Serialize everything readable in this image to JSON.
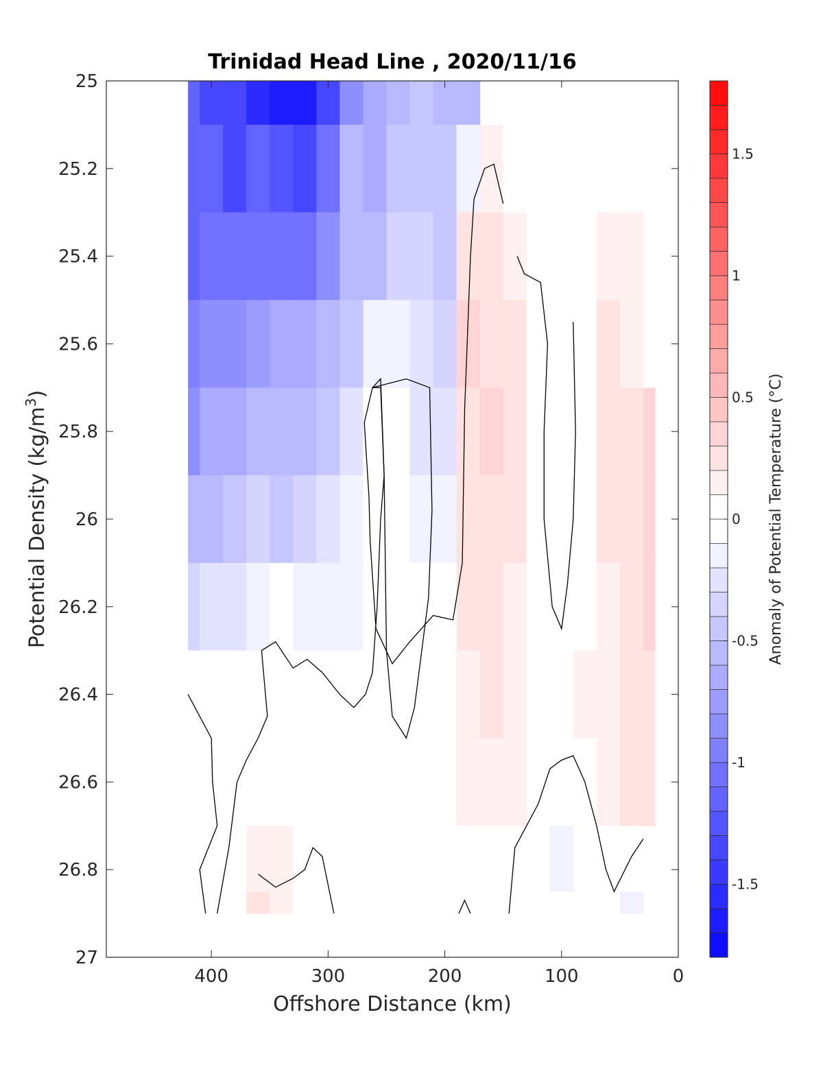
{
  "chart_data": {
    "type": "heatmap",
    "title": "Trinidad Head Line , 2020/11/16",
    "xlabel": "Offshore Distance (km)",
    "ylabel_main": "Potential Density (kg/m",
    "ylabel_sup": "3",
    "ylabel_close": ")",
    "xlim": [
      490,
      0
    ],
    "ylim": [
      25,
      27
    ],
    "y_reversed": true,
    "x_ticks": [
      "400",
      "300",
      "200",
      "100",
      "0"
    ],
    "y_ticks": [
      "25",
      "25.2",
      "25.4",
      "25.6",
      "25.8",
      "26",
      "26.2",
      "26.4",
      "26.6",
      "26.8",
      "27"
    ],
    "colorbar": {
      "label": "Anomaly of Potential Temperature (°C)",
      "range": [
        -1.8,
        1.8
      ],
      "levels_step": 0.1,
      "ticks": [
        "1.5",
        "1",
        "0.5",
        "0",
        "-0.5",
        "-1",
        "-1.5"
      ],
      "negative_color": "#0000ff",
      "zero_color": "#ffffff",
      "positive_color": "#ff0000"
    },
    "x": [
      420,
      400,
      380,
      360,
      340,
      320,
      300,
      280,
      260,
      240,
      220,
      200,
      180,
      160,
      140,
      120,
      100,
      80,
      60,
      40,
      20
    ],
    "y": [
      25.0,
      25.2,
      25.4,
      25.6,
      25.8,
      26.0,
      26.2,
      26.4,
      26.6,
      26.8,
      26.9
    ],
    "z": [
      [
        -1.2,
        -1.3,
        -1.4,
        -1.5,
        -1.6,
        -1.65,
        -1.3,
        -0.8,
        -0.7,
        -0.5,
        -0.45,
        -0.55,
        -0.5,
        null,
        null,
        null,
        null,
        null,
        null,
        null,
        null
      ],
      [
        -1.2,
        -1.2,
        -1.3,
        -1.2,
        -1.25,
        -1.3,
        -1.0,
        -0.6,
        -0.65,
        -0.45,
        -0.4,
        -0.45,
        -0.1,
        0.1,
        0.0,
        0.0,
        0.0,
        0.0,
        0.0,
        null,
        null
      ],
      [
        -1.1,
        -1.0,
        -1.05,
        -1.0,
        -1.05,
        -1.0,
        -0.8,
        -0.55,
        -0.5,
        -0.35,
        -0.35,
        -0.4,
        0.2,
        0.3,
        0.15,
        0.0,
        -0.05,
        0.0,
        0.15,
        0.1,
        null
      ],
      [
        -0.9,
        -0.85,
        -0.85,
        -0.75,
        -0.7,
        -0.7,
        -0.6,
        -0.45,
        -0.15,
        -0.1,
        -0.25,
        -0.35,
        0.35,
        0.3,
        0.2,
        0.05,
        0.0,
        0.05,
        0.2,
        0.15,
        null
      ],
      [
        -0.8,
        -0.7,
        -0.65,
        -0.55,
        -0.6,
        -0.55,
        -0.45,
        -0.3,
        -0.05,
        0.0,
        -0.2,
        -0.25,
        0.3,
        0.35,
        0.2,
        0.05,
        -0.05,
        0.0,
        0.2,
        0.25,
        0.35
      ],
      [
        -0.6,
        -0.5,
        -0.45,
        -0.35,
        -0.4,
        -0.35,
        -0.3,
        -0.15,
        -0.05,
        0.0,
        -0.1,
        -0.15,
        0.25,
        0.3,
        0.2,
        0.05,
        0.0,
        0.05,
        0.2,
        0.3,
        0.35
      ],
      [
        -0.35,
        -0.3,
        -0.2,
        -0.1,
        -0.05,
        -0.1,
        -0.15,
        -0.1,
        0.0,
        0.0,
        -0.05,
        -0.05,
        0.2,
        0.25,
        0.15,
        0.0,
        0.0,
        0.05,
        0.15,
        0.3,
        0.35
      ],
      [
        -0.05,
        -0.05,
        0.0,
        0.0,
        0.0,
        0.0,
        -0.05,
        -0.05,
        0.0,
        0.0,
        0.0,
        0.0,
        0.15,
        0.2,
        0.1,
        0.0,
        0.0,
        0.1,
        0.15,
        0.25,
        0.3
      ],
      [
        0.0,
        0.0,
        0.0,
        0.0,
        0.05,
        0.05,
        0.05,
        0.0,
        0.0,
        0.0,
        0.0,
        0.05,
        0.15,
        0.15,
        0.1,
        0.0,
        0.0,
        0.05,
        0.15,
        0.2,
        0.2
      ],
      [
        0.05,
        0.0,
        0.0,
        0.1,
        0.15,
        0.0,
        0.0,
        0.0,
        0.0,
        0.0,
        0.0,
        0.0,
        0.05,
        0.05,
        0.0,
        0.0,
        -0.1,
        -0.05,
        0.05,
        -0.05,
        null
      ],
      [
        0.05,
        0.0,
        0.05,
        0.2,
        0.15,
        0.0,
        0.0,
        0.0,
        0.0,
        0.0,
        0.0,
        0.0,
        0.05,
        0.05,
        0.0,
        0.0,
        -0.05,
        -0.05,
        0.0,
        -0.1,
        null
      ]
    ],
    "zero_contours": [
      [
        [
          262,
          25.7
        ],
        [
          255,
          25.68
        ],
        [
          252,
          25.9
        ],
        [
          250,
          26.3
        ],
        [
          245,
          26.45
        ],
        [
          233,
          26.5
        ],
        [
          226,
          26.43
        ],
        [
          214,
          26.18
        ],
        [
          211,
          25.98
        ],
        [
          213,
          25.7
        ],
        [
          233,
          25.68
        ],
        [
          262,
          25.7
        ]
      ],
      [
        [
          420,
          26.4
        ],
        [
          400,
          26.5
        ],
        [
          399,
          26.6
        ],
        [
          395,
          26.7
        ],
        [
          410,
          26.8
        ],
        [
          405,
          26.9
        ]
      ],
      [
        [
          395,
          26.9
        ],
        [
          385,
          26.75
        ],
        [
          378,
          26.6
        ],
        [
          370,
          26.55
        ],
        [
          360,
          26.5
        ],
        [
          352,
          26.45
        ],
        [
          357,
          26.3
        ],
        [
          345,
          26.28
        ],
        [
          330,
          26.34
        ],
        [
          318,
          26.32
        ],
        [
          305,
          26.35
        ],
        [
          290,
          26.4
        ],
        [
          278,
          26.43
        ],
        [
          268,
          26.4
        ],
        [
          262,
          26.35
        ],
        [
          258,
          26.2
        ],
        [
          255,
          26.0
        ],
        [
          252,
          25.9
        ],
        [
          255,
          25.7
        ],
        [
          262,
          25.7
        ],
        [
          269,
          25.78
        ],
        [
          265,
          25.95
        ],
        [
          264,
          26.05
        ],
        [
          259,
          26.25
        ],
        [
          245,
          26.33
        ],
        [
          230,
          26.28
        ],
        [
          210,
          26.22
        ],
        [
          193,
          26.23
        ],
        [
          185,
          26.1
        ],
        [
          183,
          25.75
        ],
        [
          178,
          25.4
        ],
        [
          175,
          25.27
        ],
        [
          166,
          25.2
        ],
        [
          158,
          25.19
        ],
        [
          150,
          25.28
        ]
      ],
      [
        [
          295,
          26.9
        ],
        [
          305,
          26.77
        ],
        [
          313,
          26.75
        ],
        [
          320,
          26.8
        ],
        [
          330,
          26.82
        ],
        [
          345,
          26.84
        ],
        [
          360,
          26.81
        ]
      ],
      [
        [
          188,
          26.9
        ],
        [
          183,
          26.87
        ],
        [
          178,
          26.9
        ]
      ],
      [
        [
          145,
          26.9
        ],
        [
          140,
          26.75
        ],
        [
          120,
          26.65
        ],
        [
          110,
          26.57
        ],
        [
          100,
          26.55
        ],
        [
          90,
          26.54
        ],
        [
          80,
          26.6
        ],
        [
          70,
          26.7
        ],
        [
          62,
          26.8
        ],
        [
          55,
          26.85
        ],
        [
          40,
          26.77
        ],
        [
          30,
          26.73
        ]
      ],
      [
        [
          138,
          25.4
        ],
        [
          132,
          25.44
        ],
        [
          118,
          25.46
        ],
        [
          112,
          25.6
        ],
        [
          115,
          25.8
        ],
        [
          115,
          26.0
        ],
        [
          108,
          26.2
        ],
        [
          100,
          26.25
        ],
        [
          95,
          26.15
        ],
        [
          90,
          26.0
        ],
        [
          88,
          25.8
        ],
        [
          90,
          25.55
        ]
      ]
    ]
  }
}
